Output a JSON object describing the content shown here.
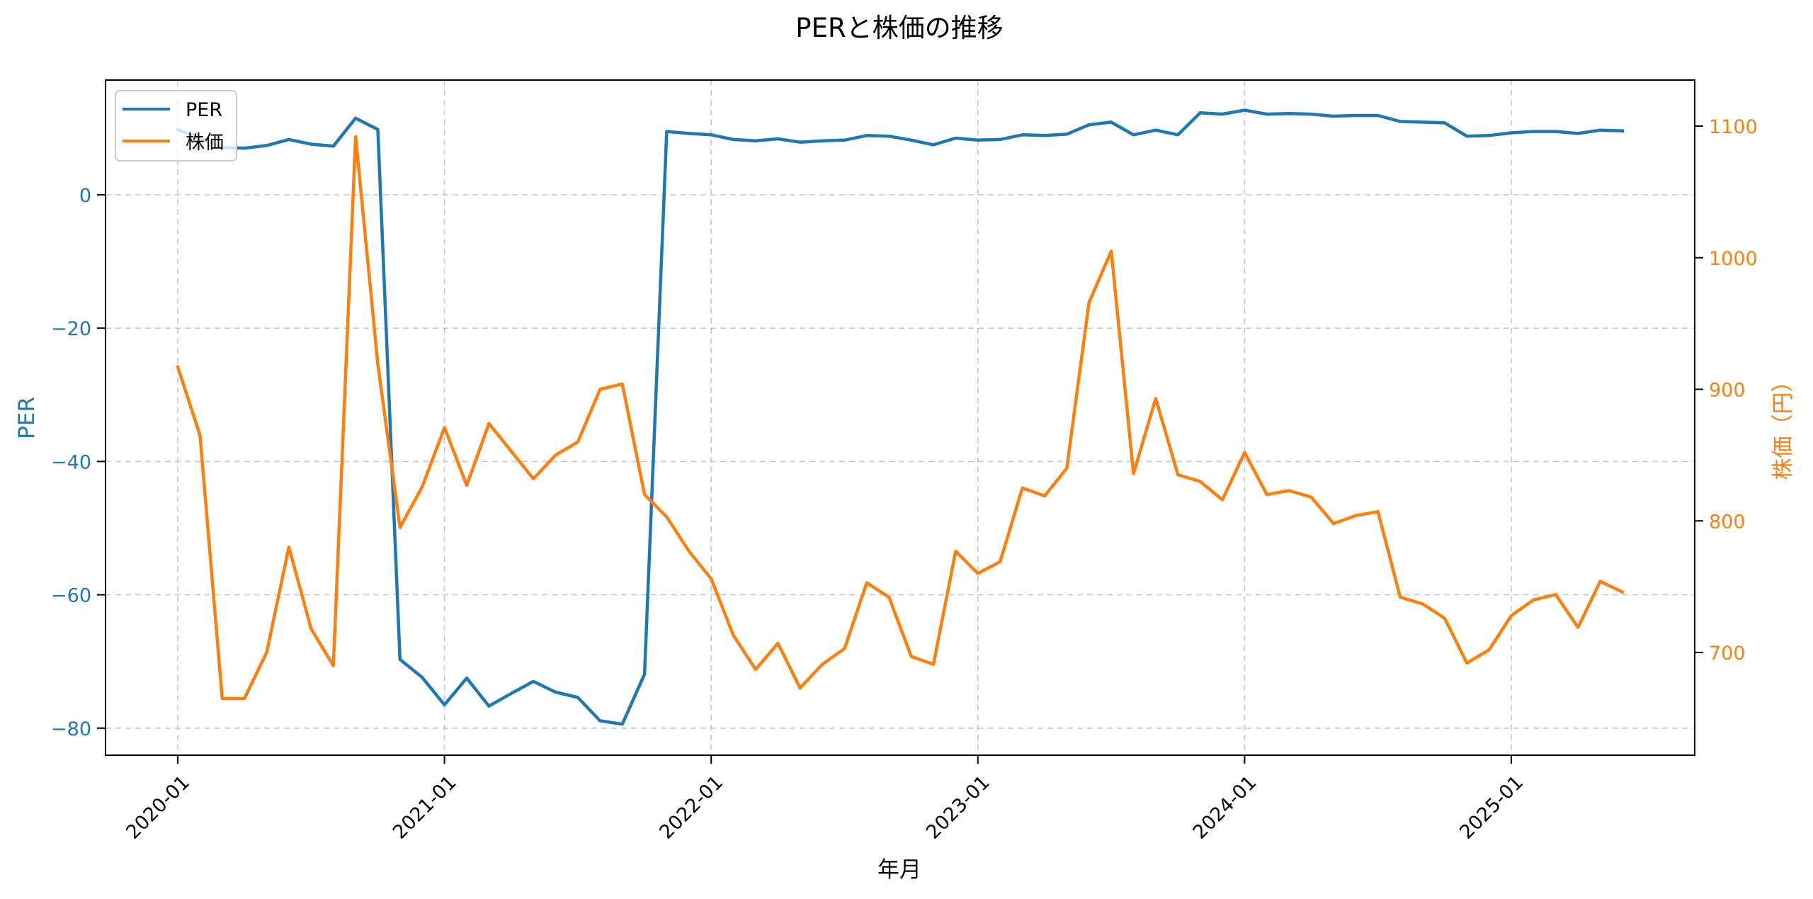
{
  "chart_data": {
    "type": "line",
    "title": "PERと株価の推移",
    "xlabel": "年月",
    "ylabel_left": "PER",
    "ylabel_right": "株価（円）",
    "grid": true,
    "legend_position": "upper left",
    "x_ticks": [
      "2020-01",
      "2021-01",
      "2022-01",
      "2023-01",
      "2024-01",
      "2025-01"
    ],
    "y_left_ticks": [
      0,
      -20,
      -40,
      -60,
      -80
    ],
    "y_left_tick_labels": [
      "0",
      "−20",
      "−40",
      "−60",
      "−80"
    ],
    "y_right_ticks": [
      1100,
      1000,
      900,
      800,
      700
    ],
    "y_left_range": [
      -84.1,
      17.2
    ],
    "y_right_range": [
      622,
      1135
    ],
    "x": [
      "2020-01",
      "2020-02",
      "2020-03",
      "2020-04",
      "2020-05",
      "2020-06",
      "2020-07",
      "2020-08",
      "2020-09",
      "2020-10",
      "2020-11",
      "2020-12",
      "2021-01",
      "2021-02",
      "2021-03",
      "2021-04",
      "2021-05",
      "2021-06",
      "2021-07",
      "2021-08",
      "2021-09",
      "2021-10",
      "2021-11",
      "2021-12",
      "2022-01",
      "2022-02",
      "2022-03",
      "2022-04",
      "2022-05",
      "2022-06",
      "2022-07",
      "2022-08",
      "2022-09",
      "2022-10",
      "2022-11",
      "2022-12",
      "2023-01",
      "2023-02",
      "2023-03",
      "2023-04",
      "2023-05",
      "2023-06",
      "2023-07",
      "2023-08",
      "2023-09",
      "2023-10",
      "2023-11",
      "2023-12",
      "2024-01",
      "2024-02",
      "2024-03",
      "2024-04",
      "2024-05",
      "2024-06",
      "2024-07",
      "2024-08",
      "2024-09",
      "2024-10",
      "2024-11",
      "2024-12",
      "2025-01",
      "2025-02",
      "2025-03",
      "2025-04",
      "2025-05",
      "2025-06"
    ],
    "series": [
      {
        "name": "PER",
        "axis": "left",
        "color": "#1f77b4",
        "values": [
          9.8,
          8.5,
          7.1,
          7.0,
          7.4,
          8.3,
          7.6,
          7.3,
          11.5,
          9.8,
          -69.7,
          -72.4,
          -76.5,
          -72.5,
          -76.7,
          -74.8,
          -73.0,
          -74.6,
          -75.4,
          -78.9,
          -79.4,
          -71.9,
          9.5,
          9.2,
          9.0,
          8.3,
          8.1,
          8.4,
          7.9,
          8.1,
          8.2,
          8.9,
          8.8,
          8.2,
          7.5,
          8.5,
          8.2,
          8.3,
          9.0,
          8.9,
          9.1,
          10.5,
          10.9,
          9.0,
          9.7,
          9.0,
          12.3,
          12.1,
          12.7,
          12.1,
          12.2,
          12.1,
          11.8,
          11.9,
          11.9,
          11.0,
          10.9,
          10.8,
          8.8,
          8.9,
          9.3,
          9.5,
          9.5,
          9.2,
          9.7,
          9.6
        ]
      },
      {
        "name": "株価",
        "axis": "right",
        "color": "#ff7f0e",
        "values": [
          917,
          865,
          665,
          665,
          700,
          780,
          718,
          690,
          1092,
          919,
          795,
          826,
          871,
          827,
          874,
          853,
          832,
          850,
          860,
          900,
          904,
          820,
          803,
          777,
          756,
          713,
          687,
          707,
          673,
          691,
          703,
          753,
          742,
          697,
          691,
          777,
          760,
          769,
          825,
          819,
          840,
          966,
          1005,
          836,
          893,
          835,
          830,
          816,
          852,
          820,
          823,
          818,
          798,
          804,
          807,
          742,
          737,
          726,
          692,
          702,
          728,
          740,
          744,
          719,
          754,
          746
        ]
      }
    ]
  },
  "colors": {
    "per": "#1f77b4",
    "price": "#ff7f0e",
    "grid": "#b0b0b0",
    "axis": "#000000"
  },
  "legend": {
    "items": [
      {
        "label": "PER",
        "color": "#1f77b4"
      },
      {
        "label": "株価",
        "color": "#ff7f0e"
      }
    ]
  }
}
